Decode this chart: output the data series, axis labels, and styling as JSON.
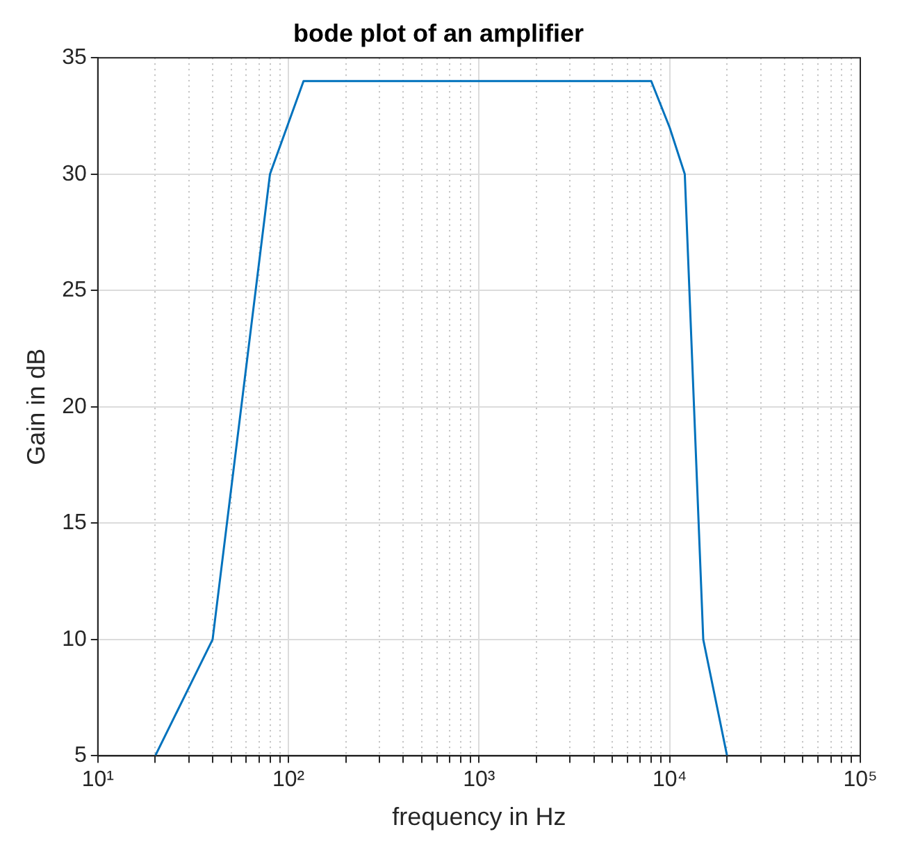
{
  "chart_data": {
    "type": "line",
    "title": "bode plot of an amplifier",
    "xlabel": "frequency in Hz",
    "ylabel": "Gain in dB",
    "log": "x",
    "grid": true,
    "legend": false,
    "marker": "none",
    "line_style": "solid",
    "x": [
      20,
      40,
      80,
      120,
      8000,
      10000,
      12000,
      15000,
      20000
    ],
    "series": [
      {
        "color": "#0072bd",
        "values": [
          5,
          10,
          30,
          34,
          34,
          32,
          30,
          10,
          5
        ]
      }
    ],
    "xlim": [
      10,
      100000
    ],
    "xticks": [
      {
        "value": 10,
        "label": "10¹"
      },
      {
        "value": 20,
        "label": null
      },
      {
        "value": 30,
        "label": null
      },
      {
        "value": 40,
        "label": null
      },
      {
        "value": 50,
        "label": null
      },
      {
        "value": 60,
        "label": null
      },
      {
        "value": 70,
        "label": null
      },
      {
        "value": 80,
        "label": null
      },
      {
        "value": 90,
        "label": null
      },
      {
        "value": 100,
        "label": "10²"
      },
      {
        "value": 200,
        "label": null
      },
      {
        "value": 300,
        "label": null
      },
      {
        "value": 400,
        "label": null
      },
      {
        "value": 500,
        "label": null
      },
      {
        "value": 600,
        "label": null
      },
      {
        "value": 700,
        "label": null
      },
      {
        "value": 800,
        "label": null
      },
      {
        "value": 900,
        "label": null
      },
      {
        "value": 1000,
        "label": "10³"
      },
      {
        "value": 2000,
        "label": null
      },
      {
        "value": 3000,
        "label": null
      },
      {
        "value": 4000,
        "label": null
      },
      {
        "value": 5000,
        "label": null
      },
      {
        "value": 6000,
        "label": null
      },
      {
        "value": 7000,
        "label": null
      },
      {
        "value": 8000,
        "label": null
      },
      {
        "value": 9000,
        "label": null
      },
      {
        "value": 10000,
        "label": "10⁴"
      },
      {
        "value": 20000,
        "label": null
      },
      {
        "value": 30000,
        "label": null
      },
      {
        "value": 40000,
        "label": null
      },
      {
        "value": 50000,
        "label": null
      },
      {
        "value": 60000,
        "label": null
      },
      {
        "value": 70000,
        "label": null
      },
      {
        "value": 80000,
        "label": null
      },
      {
        "value": 90000,
        "label": null
      },
      {
        "value": 100000,
        "label": "10⁵"
      }
    ],
    "ylim": [
      5,
      35
    ],
    "yticks": [
      5,
      10,
      15,
      20,
      25,
      30,
      35
    ]
  }
}
